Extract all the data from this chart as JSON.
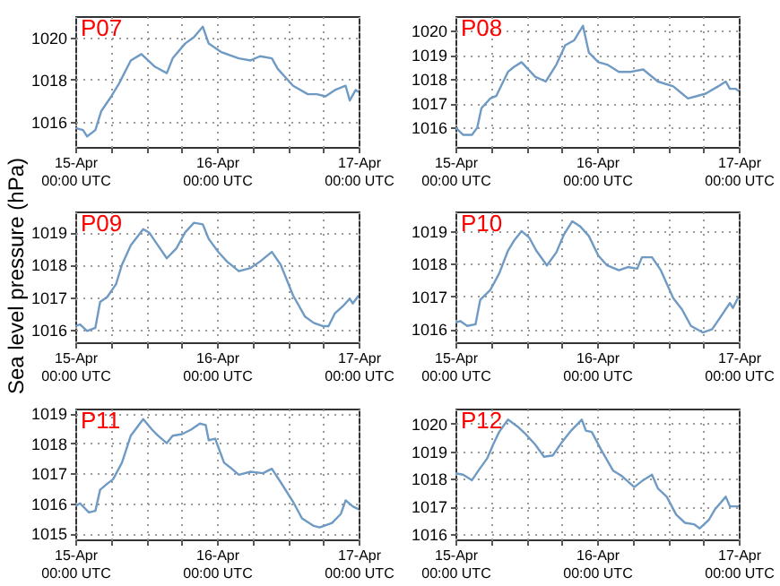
{
  "chart_data": [
    {
      "type": "line",
      "title": "P07",
      "grid": true,
      "xlim": [
        "--04-15T00:00",
        "--04-17T00:00"
      ],
      "xticks": [
        {
          "value": "--04-15T00:00",
          "label": "15-Apr\n00:00 UTC"
        },
        {
          "value": "--04-15T06:00",
          "label": null
        },
        {
          "value": "--04-15T12:00",
          "label": null
        },
        {
          "value": "--04-15T18:00",
          "label": null
        },
        {
          "value": "--04-16T00:00",
          "label": "16-Apr\n00:00 UTC"
        },
        {
          "value": "--04-16T06:00",
          "label": null
        },
        {
          "value": "--04-16T12:00",
          "label": null
        },
        {
          "value": "--04-16T18:00",
          "label": null
        },
        {
          "value": "--04-17T00:00",
          "label": "17-Apr\n00:00 UTC"
        }
      ],
      "ylim": [
        1014.8,
        1021
      ],
      "yticks": [
        1016,
        1018,
        1020
      ],
      "series": [
        {
          "color": "#6f9ac4",
          "x": [
            "--04-15T00:00",
            "--04-15T01:18",
            "--04-15T02:00",
            "--04-15T03:24",
            "--04-15T04:24",
            "--04-15T06:06",
            "--04-15T07:24",
            "--04-15T09:24",
            "--04-15T11:12",
            "--04-15T13:30",
            "--04-15T15:30",
            "--04-15T16:30",
            "--04-15T18:36",
            "--04-15T20:06",
            "--04-15T21:36",
            "--04-15T22:36",
            "--04-16T00:42",
            "--04-16T03:42",
            "--04-16T05:42",
            "--04-16T07:18",
            "--04-16T09:18",
            "--04-16T10:18",
            "--04-16T12:54",
            "--04-16T15:24",
            "--04-16T16:54",
            "--04-16T18:24",
            "--04-16T20:00",
            "--04-16T21:48",
            "--04-16T22:30",
            "--04-16T23:30",
            "--04-17T00:00"
          ],
          "values": [
            1015.7,
            1015.6,
            1015.3,
            1015.6,
            1016.5,
            1017.2,
            1017.8,
            1018.9,
            1019.2,
            1018.6,
            1018.3,
            1019.0,
            1019.7,
            1020.0,
            1020.5,
            1019.7,
            1019.3,
            1019.0,
            1018.9,
            1019.1,
            1019.0,
            1018.5,
            1017.7,
            1017.3,
            1017.3,
            1017.2,
            1017.5,
            1017.7,
            1017.0,
            1017.5,
            1017.4
          ]
        }
      ]
    },
    {
      "type": "line",
      "title": "P08",
      "grid": true,
      "xlim": [
        "--04-15T00:00",
        "--04-17T00:00"
      ],
      "xticks": [
        {
          "value": "--04-15T00:00",
          "label": "15-Apr\n00:00 UTC"
        },
        {
          "value": "--04-15T06:00",
          "label": null
        },
        {
          "value": "--04-15T12:00",
          "label": null
        },
        {
          "value": "--04-15T18:00",
          "label": null
        },
        {
          "value": "--04-16T00:00",
          "label": "16-Apr\n00:00 UTC"
        },
        {
          "value": "--04-16T06:00",
          "label": null
        },
        {
          "value": "--04-16T12:00",
          "label": null
        },
        {
          "value": "--04-16T18:00",
          "label": null
        },
        {
          "value": "--04-17T00:00",
          "label": "17-Apr\n00:00 UTC"
        }
      ],
      "ylim": [
        1015.2,
        1020.6
      ],
      "yticks": [
        1016,
        1017,
        1018,
        1019,
        1020
      ],
      "series": [
        {
          "color": "#6f9ac4",
          "x": [
            "--04-15T00:00",
            "--04-15T01:18",
            "--04-15T02:48",
            "--04-15T03:42",
            "--04-15T04:24",
            "--04-15T05:54",
            "--04-15T06:54",
            "--04-15T08:54",
            "--04-15T09:54",
            "--04-15T11:12",
            "--04-15T13:30",
            "--04-15T15:18",
            "--04-15T17:06",
            "--04-15T18:36",
            "--04-15T20:06",
            "--04-15T21:36",
            "--04-15T22:36",
            "--04-16T00:12",
            "--04-16T01:42",
            "--04-16T03:42",
            "--04-16T05:42",
            "--04-16T07:48",
            "--04-16T10:18",
            "--04-16T12:54",
            "--04-16T15:24",
            "--04-16T16:54",
            "--04-16T18:24",
            "--04-16T20:30",
            "--04-16T21:48",
            "--04-16T22:30",
            "--04-16T23:30",
            "--04-17T00:00"
          ],
          "values": [
            1016.0,
            1015.7,
            1015.7,
            1016.0,
            1016.8,
            1017.2,
            1017.3,
            1018.3,
            1018.5,
            1018.7,
            1018.1,
            1017.9,
            1018.6,
            1019.4,
            1019.6,
            1020.2,
            1019.1,
            1018.7,
            1018.6,
            1018.3,
            1018.3,
            1018.4,
            1017.9,
            1017.7,
            1017.2,
            1017.3,
            1017.4,
            1017.7,
            1017.9,
            1017.6,
            1017.6,
            1017.5
          ]
        }
      ]
    },
    {
      "type": "line",
      "title": "P09",
      "ylabel": "Sea level pressure (hPa)",
      "grid": true,
      "xlim": [
        "--04-15T00:00",
        "--04-17T00:00"
      ],
      "xticks": [
        {
          "value": "--04-15T00:00",
          "label": "15-Apr\n00:00 UTC"
        },
        {
          "value": "--04-15T06:00",
          "label": null
        },
        {
          "value": "--04-15T12:00",
          "label": null
        },
        {
          "value": "--04-15T18:00",
          "label": null
        },
        {
          "value": "--04-16T00:00",
          "label": "16-Apr\n00:00 UTC"
        },
        {
          "value": "--04-16T06:00",
          "label": null
        },
        {
          "value": "--04-16T12:00",
          "label": null
        },
        {
          "value": "--04-16T18:00",
          "label": null
        },
        {
          "value": "--04-17T00:00",
          "label": "17-Apr\n00:00 UTC"
        }
      ],
      "ylim": [
        1015.6,
        1019.65
      ],
      "yticks": [
        1016,
        1017,
        1018,
        1019
      ],
      "series": [
        {
          "color": "#6f9ac4",
          "x": [
            "--04-15T00:00",
            "--04-15T00:48",
            "--04-15T02:00",
            "--04-15T03:24",
            "--04-15T04:12",
            "--04-15T05:24",
            "--04-15T06:54",
            "--04-15T07:54",
            "--04-15T09:24",
            "--04-15T11:30",
            "--04-15T12:30",
            "--04-15T14:00",
            "--04-15T15:30",
            "--04-15T17:06",
            "--04-15T18:36",
            "--04-15T20:06",
            "--04-15T21:36",
            "--04-15T22:36",
            "--04-16T00:12",
            "--04-16T01:42",
            "--04-16T03:42",
            "--04-16T05:42",
            "--04-16T07:18",
            "--04-16T09:18",
            "--04-16T10:48",
            "--04-16T12:54",
            "--04-16T14:54",
            "--04-16T16:24",
            "--04-16T17:54",
            "--04-16T18:54",
            "--04-16T20:00",
            "--04-16T21:30",
            "--04-16T22:30",
            "--04-16T23:00",
            "--04-17T00:00"
          ],
          "values": [
            1016.1,
            1016.15,
            1015.95,
            1016.05,
            1016.85,
            1017.0,
            1017.4,
            1018.0,
            1018.6,
            1019.1,
            1019.0,
            1018.6,
            1018.2,
            1018.5,
            1019.0,
            1019.3,
            1019.25,
            1018.8,
            1018.4,
            1018.1,
            1017.8,
            1017.9,
            1018.1,
            1018.4,
            1018.0,
            1017.05,
            1016.4,
            1016.2,
            1016.1,
            1016.1,
            1016.5,
            1016.75,
            1016.95,
            1016.8,
            1017.05
          ]
        }
      ]
    },
    {
      "type": "line",
      "title": "P10",
      "grid": true,
      "xlim": [
        "--04-15T00:00",
        "--04-17T00:00"
      ],
      "xticks": [
        {
          "value": "--04-15T00:00",
          "label": "15-Apr\n00:00 UTC"
        },
        {
          "value": "--04-15T06:00",
          "label": null
        },
        {
          "value": "--04-15T12:00",
          "label": null
        },
        {
          "value": "--04-15T18:00",
          "label": null
        },
        {
          "value": "--04-16T00:00",
          "label": "16-Apr\n00:00 UTC"
        },
        {
          "value": "--04-16T06:00",
          "label": null
        },
        {
          "value": "--04-16T12:00",
          "label": null
        },
        {
          "value": "--04-16T18:00",
          "label": null
        },
        {
          "value": "--04-17T00:00",
          "label": "17-Apr\n00:00 UTC"
        }
      ],
      "ylim": [
        1015.6,
        1019.6
      ],
      "yticks": [
        1016,
        1017,
        1018,
        1019
      ],
      "series": [
        {
          "color": "#6f9ac4",
          "x": [
            "--04-15T00:00",
            "--04-15T00:48",
            "--04-15T02:00",
            "--04-15T03:24",
            "--04-15T04:12",
            "--04-15T05:54",
            "--04-15T07:24",
            "--04-15T08:54",
            "--04-15T09:54",
            "--04-15T11:12",
            "--04-15T12:30",
            "--04-15T13:42",
            "--04-15T15:30",
            "--04-15T17:06",
            "--04-15T18:24",
            "--04-15T19:48",
            "--04-15T21:06",
            "--04-15T22:36",
            "--04-16T00:12",
            "--04-16T01:42",
            "--04-16T03:42",
            "--04-16T05:12",
            "--04-16T06:48",
            "--04-16T07:36",
            "--04-16T09:18",
            "--04-16T10:48",
            "--04-16T12:54",
            "--04-16T14:24",
            "--04-16T15:54",
            "--04-16T17:54",
            "--04-16T19:30",
            "--04-16T21:00",
            "--04-16T22:30",
            "--04-16T23:00",
            "--04-17T00:00"
          ],
          "values": [
            1016.2,
            1016.25,
            1016.1,
            1016.15,
            1016.9,
            1017.2,
            1017.7,
            1018.4,
            1018.7,
            1019.0,
            1018.8,
            1018.4,
            1017.95,
            1018.35,
            1018.9,
            1019.3,
            1019.15,
            1018.85,
            1018.25,
            1017.95,
            1017.8,
            1017.9,
            1017.85,
            1018.2,
            1018.2,
            1017.8,
            1016.95,
            1016.6,
            1016.1,
            1015.9,
            1016.0,
            1016.4,
            1016.8,
            1016.65,
            1017.0
          ]
        }
      ]
    },
    {
      "type": "line",
      "title": "P11",
      "grid": true,
      "xlim": [
        "--04-15T00:00",
        "--04-17T00:00"
      ],
      "xticks": [
        {
          "value": "--04-15T00:00",
          "label": "15-Apr\n00:00 UTC"
        },
        {
          "value": "--04-15T06:00",
          "label": null
        },
        {
          "value": "--04-15T12:00",
          "label": null
        },
        {
          "value": "--04-15T18:00",
          "label": null
        },
        {
          "value": "--04-16T00:00",
          "label": "16-Apr\n00:00 UTC"
        },
        {
          "value": "--04-16T06:00",
          "label": null
        },
        {
          "value": "--04-16T12:00",
          "label": null
        },
        {
          "value": "--04-16T18:00",
          "label": null
        },
        {
          "value": "--04-17T00:00",
          "label": "17-Apr\n00:00 UTC"
        }
      ],
      "ylim": [
        1014.8,
        1019.15
      ],
      "yticks": [
        1015,
        1016,
        1017,
        1018,
        1019
      ],
      "series": [
        {
          "color": "#6f9ac4",
          "x": [
            "--04-15T00:00",
            "--04-15T00:48",
            "--04-15T02:18",
            "--04-15T03:24",
            "--04-15T04:12",
            "--04-15T05:24",
            "--04-15T06:24",
            "--04-15T07:54",
            "--04-15T09:24",
            "--04-15T11:30",
            "--04-15T13:00",
            "--04-15T14:00",
            "--04-15T15:30",
            "--04-15T16:30",
            "--04-15T18:06",
            "--04-15T19:36",
            "--04-15T21:06",
            "--04-15T22:06",
            "--04-15T22:36",
            "--04-15T23:42",
            "--04-16T01:12",
            "--04-16T02:12",
            "--04-16T03:42",
            "--04-16T05:42",
            "--04-16T07:48",
            "--04-16T09:18",
            "--04-16T10:48",
            "--04-16T12:54",
            "--04-16T14:24",
            "--04-16T16:24",
            "--04-16T17:24",
            "--04-16T19:30",
            "--04-16T21:00",
            "--04-16T21:48",
            "--04-16T23:00",
            "--04-17T00:00"
          ],
          "values": [
            1015.9,
            1016.0,
            1015.7,
            1015.75,
            1016.45,
            1016.65,
            1016.8,
            1017.35,
            1018.25,
            1018.8,
            1018.45,
            1018.25,
            1018.0,
            1018.25,
            1018.3,
            1018.45,
            1018.65,
            1018.6,
            1018.1,
            1018.15,
            1017.35,
            1017.2,
            1016.95,
            1017.05,
            1017.0,
            1017.15,
            1016.7,
            1016.05,
            1015.5,
            1015.25,
            1015.2,
            1015.35,
            1015.65,
            1016.1,
            1015.9,
            1015.8
          ]
        }
      ]
    },
    {
      "type": "line",
      "title": "P12",
      "grid": true,
      "xlim": [
        "--04-15T00:00",
        "--04-17T00:00"
      ],
      "xticks": [
        {
          "value": "--04-15T00:00",
          "label": "15-Apr\n00:00 UTC"
        },
        {
          "value": "--04-15T06:00",
          "label": null
        },
        {
          "value": "--04-15T12:00",
          "label": null
        },
        {
          "value": "--04-15T18:00",
          "label": null
        },
        {
          "value": "--04-16T00:00",
          "label": "16-Apr\n00:00 UTC"
        },
        {
          "value": "--04-16T06:00",
          "label": null
        },
        {
          "value": "--04-16T12:00",
          "label": null
        },
        {
          "value": "--04-16T18:00",
          "label": null
        },
        {
          "value": "--04-17T00:00",
          "label": "17-Apr\n00:00 UTC"
        }
      ],
      "ylim": [
        1015.8,
        1020.55
      ],
      "yticks": [
        1016,
        1017,
        1018,
        1019,
        1020
      ],
      "series": [
        {
          "color": "#6f9ac4",
          "x": [
            "--04-15T00:00",
            "--04-15T01:18",
            "--04-15T02:48",
            "--04-15T03:54",
            "--04-15T05:24",
            "--04-15T06:24",
            "--04-15T07:24",
            "--04-15T08:54",
            "--04-15T10:30",
            "--04-15T12:00",
            "--04-15T13:30",
            "--04-15T15:00",
            "--04-15T16:30",
            "--04-15T18:06",
            "--04-15T19:36",
            "--04-15T21:24",
            "--04-15T22:06",
            "--04-15T23:06",
            "--04-16T00:42",
            "--04-16T02:42",
            "--04-16T04:12",
            "--04-16T06:18",
            "--04-16T07:48",
            "--04-16T09:18",
            "--04-16T10:18",
            "--04-16T11:48",
            "--04-16T13:24",
            "--04-16T14:54",
            "--04-16T16:24",
            "--04-16T17:24",
            "--04-16T18:54",
            "--04-16T20:00",
            "--04-16T21:48",
            "--04-16T22:30",
            "--04-17T00:00"
          ],
          "values": [
            1018.2,
            1018.15,
            1017.95,
            1018.3,
            1018.75,
            1019.25,
            1019.7,
            1020.15,
            1019.9,
            1019.6,
            1019.25,
            1018.8,
            1018.85,
            1019.35,
            1019.75,
            1020.15,
            1019.75,
            1019.7,
            1019.05,
            1018.3,
            1018.1,
            1017.7,
            1017.95,
            1018.15,
            1017.65,
            1017.35,
            1016.7,
            1016.4,
            1016.35,
            1016.2,
            1016.5,
            1016.9,
            1017.35,
            1017.0,
            1017.0
          ]
        }
      ]
    }
  ]
}
